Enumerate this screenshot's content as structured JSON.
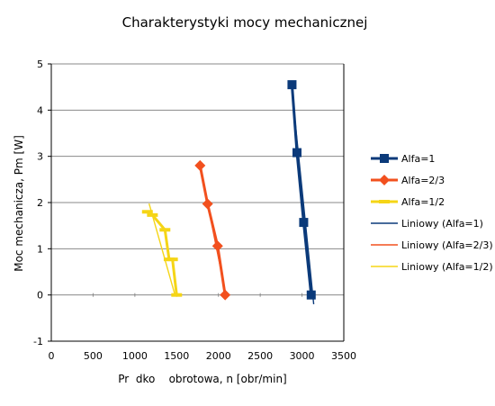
{
  "chart_data": {
    "type": "scatter",
    "title": "Charakterystyki mocy mechanicznej",
    "xlabel": "Pr  dko    obrotowa, n [obr/min]",
    "ylabel": "Moc mechanicza, Pm [W]",
    "xlim": [
      0,
      3500
    ],
    "ylim": [
      -1,
      5
    ],
    "xticks": [
      "0",
      "500",
      "1000",
      "1500",
      "2000",
      "2500",
      "3000",
      "3500"
    ],
    "yticks": [
      "-1",
      "0",
      "1",
      "2",
      "3",
      "4",
      "5"
    ],
    "grid": "horizontal",
    "legend_position": "right",
    "series": [
      {
        "name": "Alfa=1",
        "color": "#0b3a7a",
        "marker": "square",
        "points": [
          [
            2880,
            4.55
          ],
          [
            2940,
            3.08
          ],
          [
            3020,
            1.57
          ],
          [
            3110,
            0.0
          ]
        ]
      },
      {
        "name": "Alfa=2/3",
        "color": "#f2501e",
        "marker": "diamond",
        "points": [
          [
            1780,
            2.8
          ],
          [
            1870,
            1.97
          ],
          [
            1990,
            1.06
          ],
          [
            2080,
            0.0
          ]
        ]
      },
      {
        "name": "Alfa=1/2",
        "color": "#f5d516",
        "marker": "dash",
        "points": [
          [
            1150,
            1.8
          ],
          [
            1210,
            1.73
          ],
          [
            1360,
            1.41
          ],
          [
            1410,
            0.77
          ],
          [
            1450,
            0.77
          ],
          [
            1500,
            0.0
          ]
        ]
      }
    ],
    "trendlines": [
      {
        "name": "Liniowy (Alfa=1)",
        "color": "#0b3a7a",
        "from": [
          2870,
          4.6
        ],
        "to": [
          3140,
          -0.2
        ]
      },
      {
        "name": "Liniowy (Alfa=2/3)",
        "color": "#f2501e",
        "from": [
          1780,
          2.8
        ],
        "to": [
          2090,
          -0.01
        ]
      },
      {
        "name": "Liniowy (Alfa=1/2)",
        "color": "#f5d516",
        "from": [
          1170,
          1.98
        ],
        "to": [
          1480,
          0.0
        ]
      }
    ],
    "legend": [
      "Alfa=1",
      "Alfa=2/3",
      "Alfa=1/2",
      "Liniowy (Alfa=1)",
      "Liniowy (Alfa=2/3)",
      "Liniowy (Alfa=1/2)"
    ]
  }
}
